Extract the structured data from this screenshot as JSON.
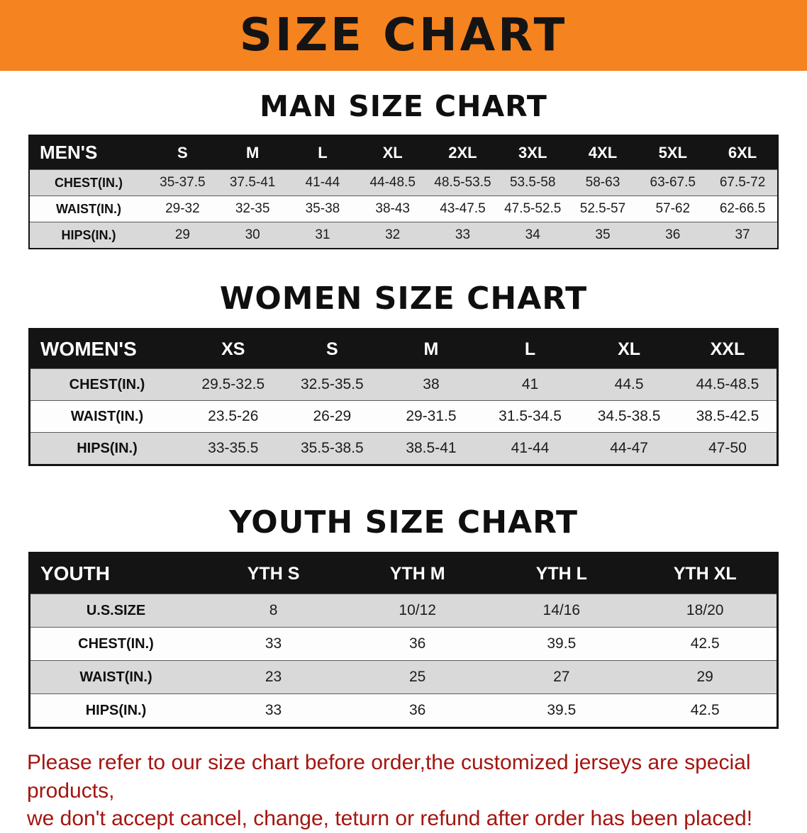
{
  "banner": {
    "title": "SIZE CHART"
  },
  "colors": {
    "banner_bg": "#f5831f",
    "table_header_bg": "#141414",
    "row_stripe": "#d9d9d9",
    "disclaimer_text": "#a31510"
  },
  "men": {
    "heading": "MAN SIZE CHART",
    "table": {
      "header": [
        "MEN'S",
        "S",
        "M",
        "L",
        "XL",
        "2XL",
        "3XL",
        "4XL",
        "5XL",
        "6XL"
      ],
      "rows": [
        [
          "CHEST(IN.)",
          "35-37.5",
          "37.5-41",
          "41-44",
          "44-48.5",
          "48.5-53.5",
          "53.5-58",
          "58-63",
          "63-67.5",
          "67.5-72"
        ],
        [
          "WAIST(IN.)",
          "29-32",
          "32-35",
          "35-38",
          "38-43",
          "43-47.5",
          "47.5-52.5",
          "52.5-57",
          "57-62",
          "62-66.5"
        ],
        [
          "HIPS(IN.)",
          "29",
          "30",
          "31",
          "32",
          "33",
          "34",
          "35",
          "36",
          "37"
        ]
      ]
    }
  },
  "women": {
    "heading": "WOMEN SIZE CHART",
    "table": {
      "header": [
        "WOMEN'S",
        "XS",
        "S",
        "M",
        "L",
        "XL",
        "XXL"
      ],
      "rows": [
        [
          "CHEST(IN.)",
          "29.5-32.5",
          "32.5-35.5",
          "38",
          "41",
          "44.5",
          "44.5-48.5"
        ],
        [
          "WAIST(IN.)",
          "23.5-26",
          "26-29",
          "29-31.5",
          "31.5-34.5",
          "34.5-38.5",
          "38.5-42.5"
        ],
        [
          "HIPS(IN.)",
          "33-35.5",
          "35.5-38.5",
          "38.5-41",
          "41-44",
          "44-47",
          "47-50"
        ]
      ]
    }
  },
  "youth": {
    "heading": "YOUTH SIZE CHART",
    "table": {
      "header": [
        "YOUTH",
        "YTH S",
        "YTH M",
        "YTH L",
        "YTH XL"
      ],
      "rows": [
        [
          "U.S.SIZE",
          "8",
          "10/12",
          "14/16",
          "18/20"
        ],
        [
          "CHEST(IN.)",
          "33",
          "36",
          "39.5",
          "42.5"
        ],
        [
          "WAIST(IN.)",
          "23",
          "25",
          "27",
          "29"
        ],
        [
          "HIPS(IN.)",
          "33",
          "36",
          "39.5",
          "42.5"
        ]
      ]
    }
  },
  "disclaimer": {
    "line1": "Please refer to our size chart before order,the customized jerseys are special products,",
    "line2": "we don't accept cancel, change, teturn or refund after order has been placed!"
  }
}
